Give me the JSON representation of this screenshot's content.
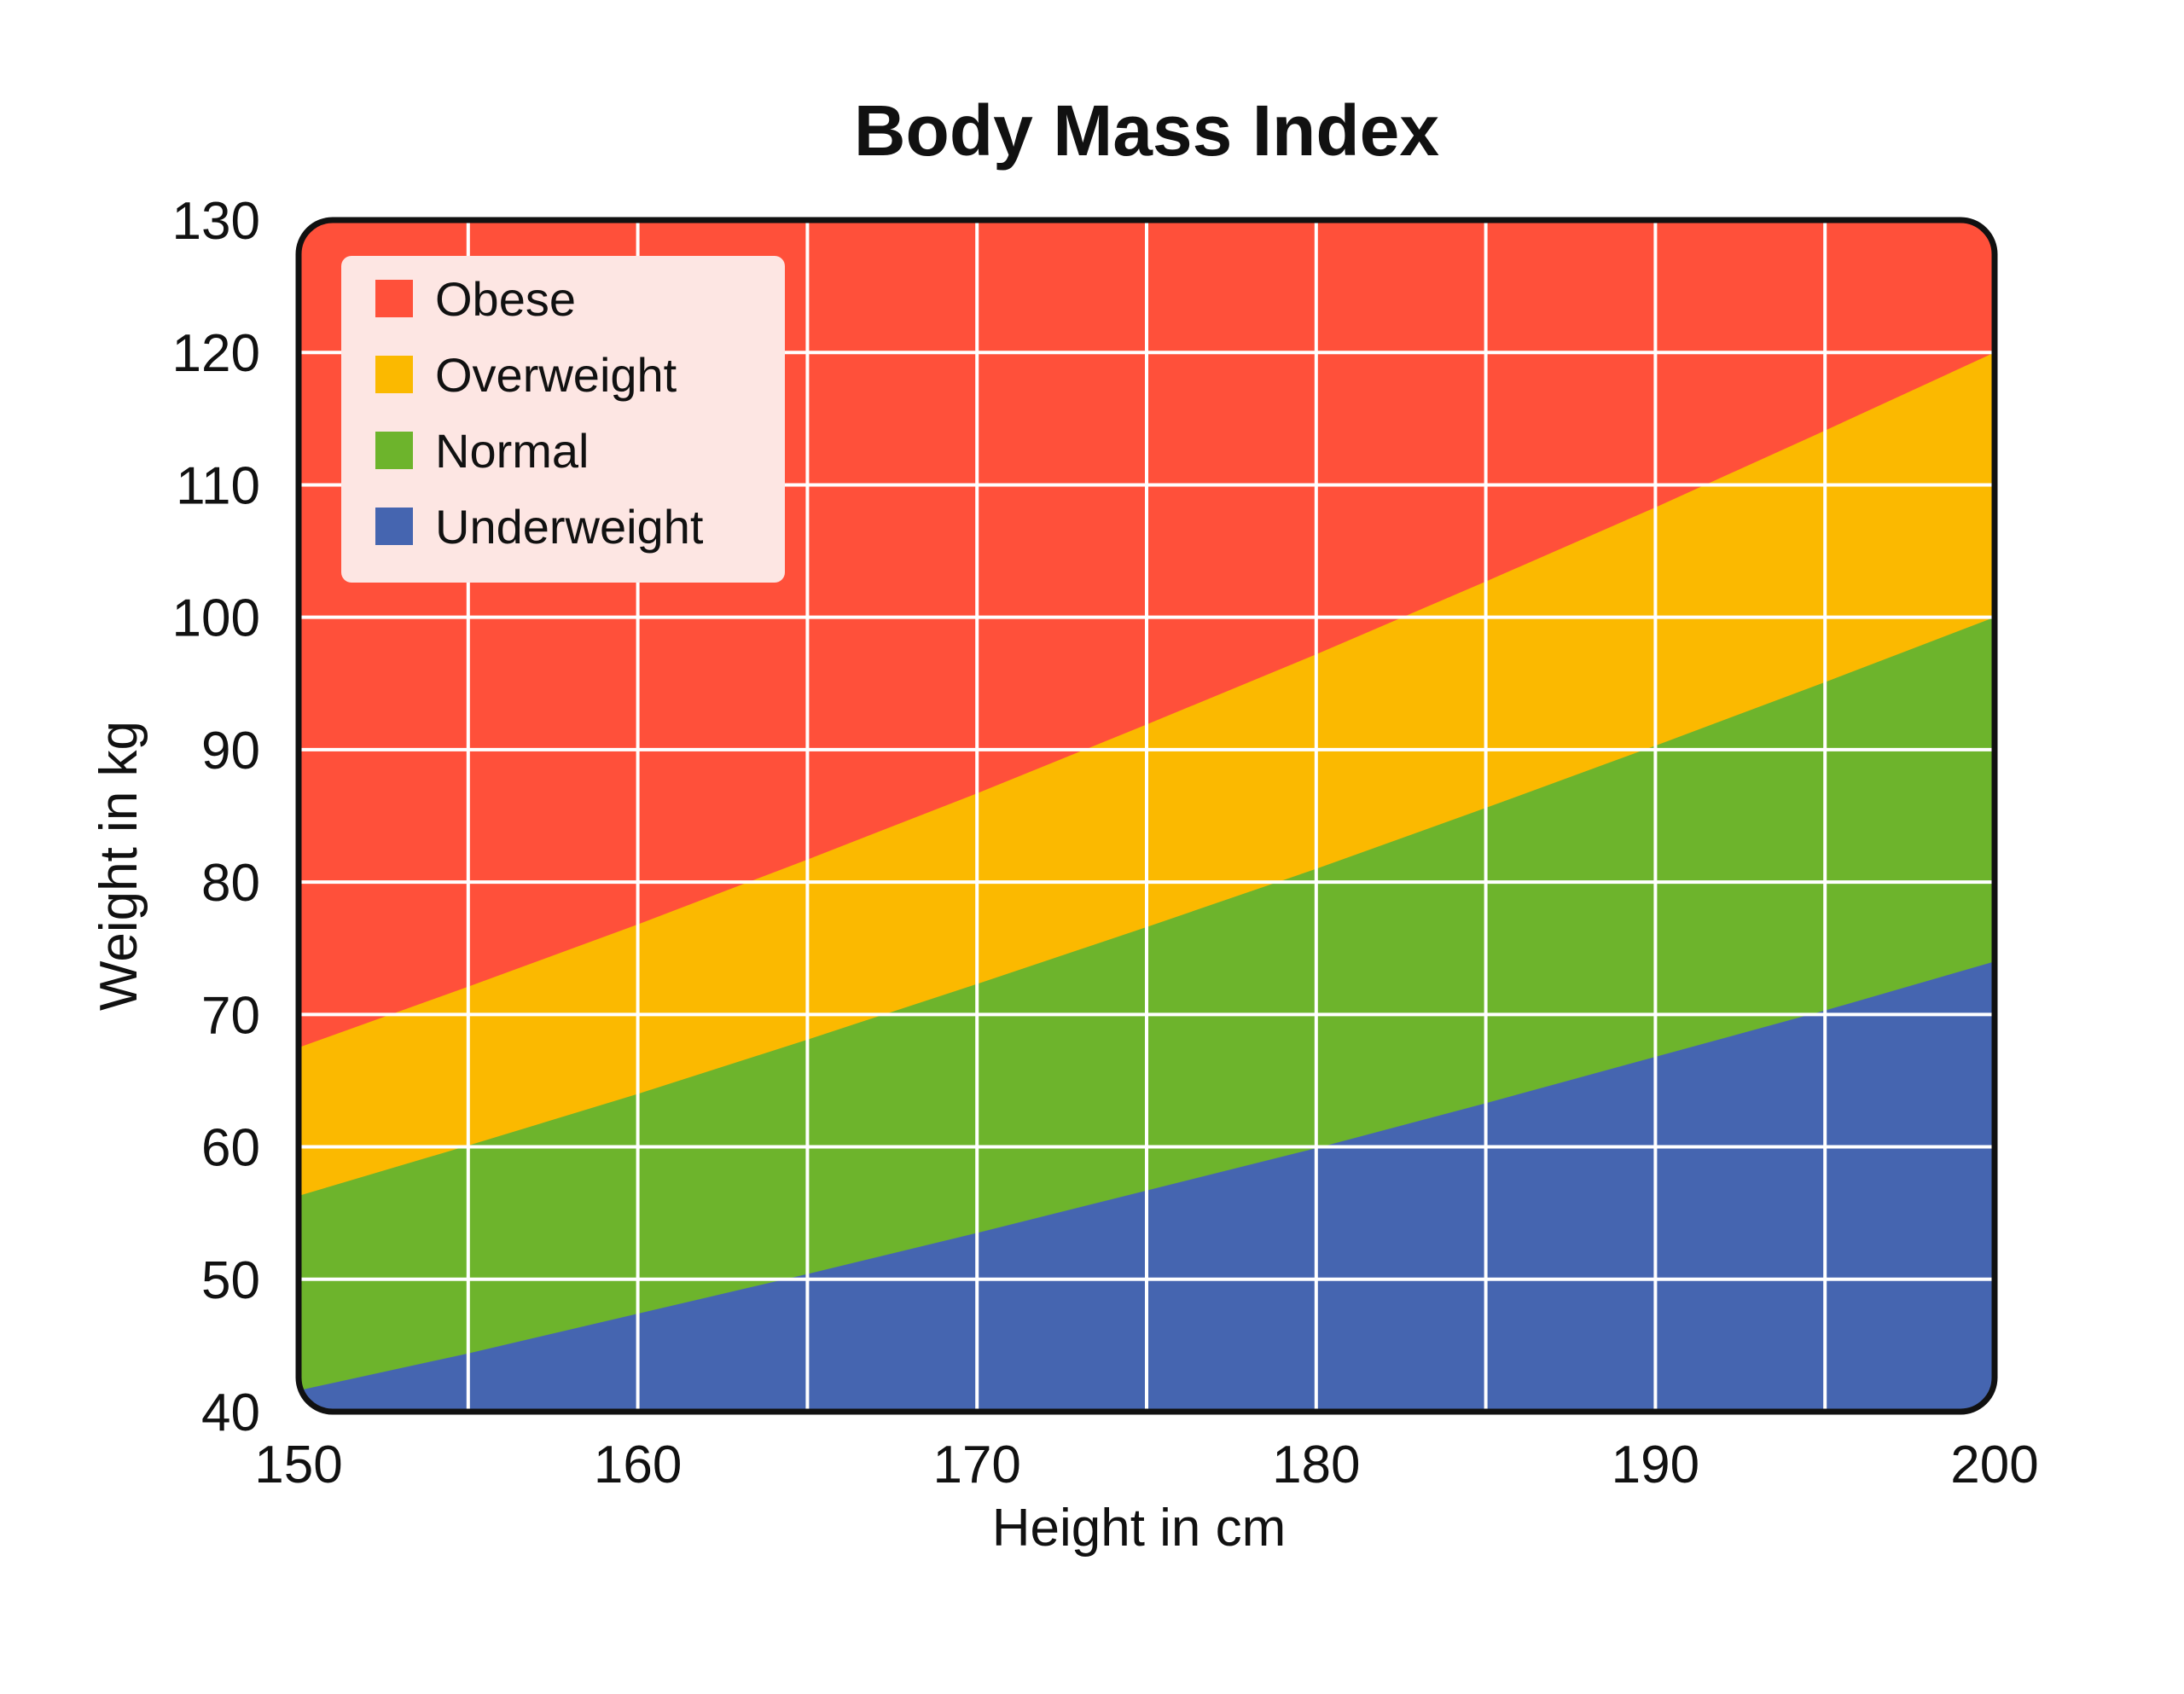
{
  "chart_data": {
    "type": "area",
    "title": "Body Mass Index",
    "xlabel": "Height in cm",
    "ylabel": "Weight in kg",
    "xlim": [
      150,
      200
    ],
    "ylim": [
      40,
      130
    ],
    "xticks": [
      150,
      160,
      170,
      180,
      190,
      200
    ],
    "yticks": [
      40,
      50,
      60,
      70,
      80,
      90,
      100,
      110,
      120,
      130
    ],
    "grid": true,
    "grid_x_step": 5,
    "grid_y_step": 10,
    "legend_position": "top-left",
    "x": [
      150,
      155,
      160,
      165,
      170,
      175,
      180,
      185,
      190,
      195,
      200
    ],
    "boundaries": [
      {
        "between": [
          "Underweight",
          "Normal"
        ],
        "values": [
          41.6,
          44.4,
          47.4,
          50.4,
          53.5,
          56.7,
          59.9,
          63.3,
          66.8,
          70.3,
          74.0
        ]
      },
      {
        "between": [
          "Normal",
          "Overweight"
        ],
        "values": [
          56.3,
          60.1,
          64.0,
          68.1,
          72.3,
          76.6,
          81.0,
          85.6,
          90.3,
          95.1,
          100.0
        ]
      },
      {
        "between": [
          "Overweight",
          "Obese"
        ],
        "values": [
          67.5,
          72.1,
          76.8,
          81.7,
          86.7,
          91.9,
          97.2,
          102.7,
          108.3,
          114.1,
          120.0
        ]
      }
    ],
    "series": [
      {
        "name": "Obese",
        "color": "#FF503A"
      },
      {
        "name": "Overweight",
        "color": "#FBB900"
      },
      {
        "name": "Normal",
        "color": "#6DB42C"
      },
      {
        "name": "Underweight",
        "color": "#4565B0"
      }
    ],
    "legend_background": "#FDE6E3"
  }
}
